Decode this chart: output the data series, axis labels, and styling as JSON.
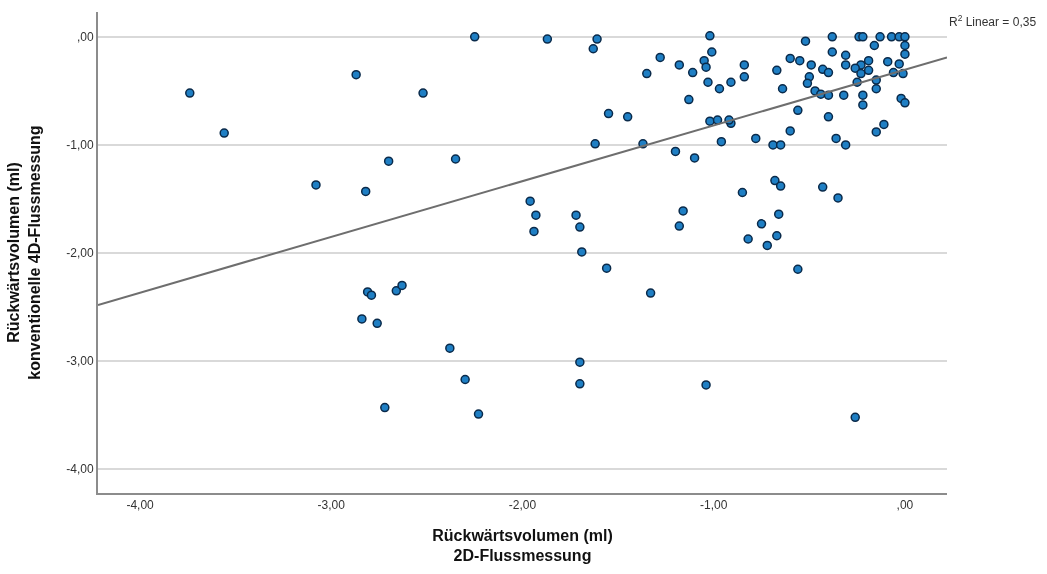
{
  "chart_data": {
    "type": "scatter",
    "xlabel": "Rückwärtsvolumen (ml)\n2D-Flussmessung",
    "ylabel": "Rückwärtsvolumen (ml)\nkonventionelle 4D-Flussmessung",
    "xlim": [
      -4.22,
      0.22
    ],
    "ylim": [
      -4.22,
      0.23
    ],
    "xticks": [
      {
        "value": -4,
        "label": "-4,00"
      },
      {
        "value": -3,
        "label": "-3,00"
      },
      {
        "value": -2,
        "label": "-2,00"
      },
      {
        "value": -1,
        "label": "-1,00"
      },
      {
        "value": 0,
        "label": ",00"
      }
    ],
    "yticks": [
      {
        "value": -4,
        "label": "-4,00"
      },
      {
        "value": -3,
        "label": "-3,00"
      },
      {
        "value": -2,
        "label": "-2,00"
      },
      {
        "value": -1,
        "label": "-1,00"
      },
      {
        "value": 0,
        "label": ",00"
      }
    ],
    "grid": "y",
    "annotations": [
      "R$^{2}$ Linear = 0,35"
    ],
    "series": [
      {
        "color": "#1f7fc4",
        "marker": "circle",
        "x": [
          -3.74,
          -3.56,
          -2.87,
          -2.52,
          -2.25,
          -3.08,
          -2.82,
          -2.7,
          -2.35,
          -2.81,
          -2.79,
          -2.66,
          -2.63,
          -1.96,
          -1.93,
          -1.94,
          -2.84,
          -2.76,
          -2.38,
          -2.3,
          -2.72,
          -2.23,
          -1.87,
          -1.61,
          -1.63,
          -1.02,
          -1.01,
          -1.28,
          -1.35,
          -1.18,
          -1.11,
          -1.05,
          -1.04,
          -1.13,
          -1.03,
          -0.97,
          -0.91,
          -0.84,
          -0.84,
          -1.55,
          -1.45,
          -1.62,
          -1.37,
          -1.2,
          -1.1,
          -1.02,
          -0.98,
          -0.91,
          -0.92,
          -0.96,
          -0.78,
          -0.69,
          -0.65,
          -0.6,
          -0.56,
          -0.67,
          -0.64,
          -0.6,
          -0.55,
          -0.52,
          -0.49,
          -0.5,
          -0.51,
          -0.47,
          -0.44,
          -0.4,
          -0.43,
          -0.4,
          -0.38,
          -0.38,
          -0.31,
          -0.31,
          -0.24,
          -0.22,
          -0.13,
          -0.16,
          -0.19,
          -0.23,
          -0.26,
          -0.23,
          -0.19,
          -0.25,
          -0.32,
          -0.22,
          -0.22,
          -0.15,
          -0.15,
          -0.09,
          -0.06,
          -0.07,
          -0.03,
          0.0,
          0.0,
          0.0,
          -0.03,
          -0.01,
          -0.02,
          0.0,
          -0.4,
          -0.36,
          -0.31,
          -0.15,
          -0.11,
          -0.68,
          -0.65,
          -0.43,
          -0.35,
          -0.85,
          -1.72,
          -1.7,
          -1.69,
          -1.56,
          -1.16,
          -1.18,
          -0.75,
          -0.66,
          -0.67,
          -0.82,
          -0.72,
          -0.56,
          -1.33,
          -1.7,
          -1.7,
          -1.04,
          -0.26
        ],
        "values": [
          -0.52,
          -0.89,
          -0.35,
          -0.52,
          0.0,
          -1.37,
          -1.43,
          -1.15,
          -1.13,
          -2.36,
          -2.39,
          -2.35,
          -2.3,
          -1.52,
          -1.65,
          -1.8,
          -2.61,
          -2.65,
          -2.88,
          -3.17,
          -3.43,
          -3.49,
          -0.02,
          -0.02,
          -0.11,
          0.01,
          -0.14,
          -0.19,
          -0.34,
          -0.26,
          -0.33,
          -0.22,
          -0.28,
          -0.58,
          -0.42,
          -0.48,
          -0.42,
          -0.37,
          -0.26,
          -0.71,
          -0.74,
          -0.99,
          -0.99,
          -1.06,
          -1.12,
          -0.78,
          -0.77,
          -0.8,
          -0.77,
          -0.97,
          -0.94,
          -1.0,
          -1.0,
          -0.87,
          -0.68,
          -0.31,
          -0.48,
          -0.2,
          -0.22,
          -0.04,
          -0.26,
          -0.37,
          -0.43,
          -0.5,
          -0.53,
          -0.54,
          -0.3,
          -0.33,
          0.0,
          -0.14,
          -0.17,
          -0.26,
          0.0,
          0.0,
          0.0,
          -0.08,
          -0.22,
          -0.26,
          -0.29,
          -0.34,
          -0.31,
          -0.42,
          -0.54,
          -0.54,
          -0.63,
          -0.4,
          -0.48,
          -0.23,
          -0.33,
          0.0,
          0.0,
          0.0,
          -0.08,
          -0.16,
          -0.25,
          -0.34,
          -0.57,
          -0.61,
          -0.74,
          -0.94,
          -1.0,
          -0.88,
          -0.81,
          -1.33,
          -1.38,
          -1.39,
          -1.49,
          -1.44,
          -1.65,
          -1.76,
          -1.99,
          -2.14,
          -1.61,
          -1.75,
          -1.73,
          -1.64,
          -1.84,
          -1.87,
          -1.93,
          -2.15,
          -2.37,
          -3.01,
          -3.21,
          -3.22,
          -3.52
        ]
      },
      {
        "type": "line",
        "color": "#6e6e6e",
        "marker": "none",
        "line_style": "solid",
        "x": [
          -4.22,
          0.22
        ],
        "values": [
          -2.48,
          -0.19
        ]
      }
    ]
  }
}
